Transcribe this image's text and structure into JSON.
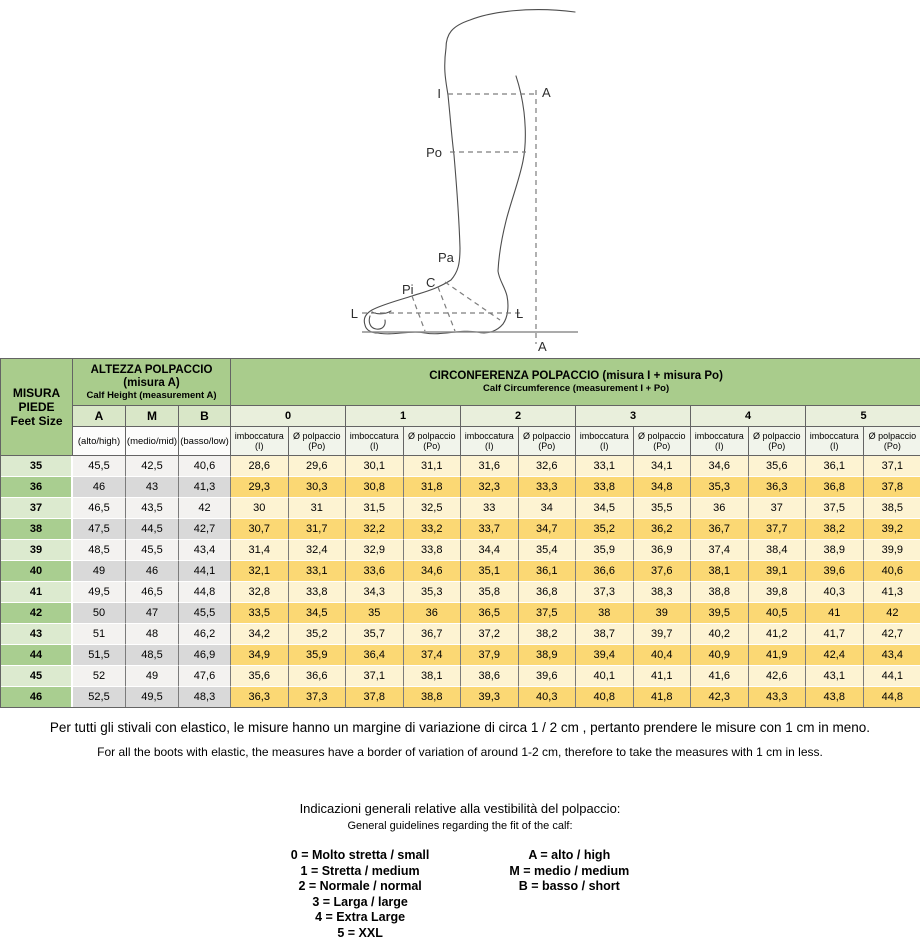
{
  "colors": {
    "header_green": "#A9CC8C",
    "subheader_green": "#D9E7C8",
    "row_green_light": "#DCEACF",
    "row_green_dark": "#A9CE90",
    "row_gray_light": "#F3F2F0",
    "row_gray_dark": "#D9D9D9",
    "row_yellow_light": "#FDF3D2",
    "row_yellow_dark": "#FBD874"
  },
  "diagram": {
    "labels": {
      "i": "I",
      "a_top": "A",
      "po": "Po",
      "pa": "Pa",
      "c": "C",
      "pi": "Pi",
      "l_left": "L",
      "l_right": "L",
      "a_bottom": "A"
    }
  },
  "table": {
    "feet_size": {
      "line1": "MISURA",
      "line2": "PIEDE",
      "line3": "Feet Size"
    },
    "calf_height": {
      "title": "ALTEZZA POLPACCIO",
      "subtitle": "(misura A)",
      "subtitle_en": "Calf Height (measurement A)",
      "codes": [
        "A",
        "M",
        "B"
      ],
      "code_labels": [
        "(alto/high)",
        "(medio/mid)",
        "(basso/low)"
      ]
    },
    "calf_circumference": {
      "title": "CIRCONFERENZA POLPACCIO  (misura I + misura Po)",
      "subtitle_en": "Calf Circumference (measurement I + Po)",
      "fit_levels": [
        "0",
        "1",
        "2",
        "3",
        "4",
        "5"
      ],
      "sub_columns": [
        {
          "name": "imboccatura",
          "code": "(I)"
        },
        {
          "name": "Ø polpaccio",
          "code": "(Po)"
        }
      ]
    },
    "rows": [
      {
        "size": "35",
        "height": [
          "45,5",
          "42,5",
          "40,6"
        ],
        "circumference": [
          "28,6",
          "29,6",
          "30,1",
          "31,1",
          "31,6",
          "32,6",
          "33,1",
          "34,1",
          "34,6",
          "35,6",
          "36,1",
          "37,1"
        ]
      },
      {
        "size": "36",
        "height": [
          "46",
          "43",
          "41,3"
        ],
        "circumference": [
          "29,3",
          "30,3",
          "30,8",
          "31,8",
          "32,3",
          "33,3",
          "33,8",
          "34,8",
          "35,3",
          "36,3",
          "36,8",
          "37,8"
        ]
      },
      {
        "size": "37",
        "height": [
          "46,5",
          "43,5",
          "42"
        ],
        "circumference": [
          "30",
          "31",
          "31,5",
          "32,5",
          "33",
          "34",
          "34,5",
          "35,5",
          "36",
          "37",
          "37,5",
          "38,5"
        ]
      },
      {
        "size": "38",
        "height": [
          "47,5",
          "44,5",
          "42,7"
        ],
        "circumference": [
          "30,7",
          "31,7",
          "32,2",
          "33,2",
          "33,7",
          "34,7",
          "35,2",
          "36,2",
          "36,7",
          "37,7",
          "38,2",
          "39,2"
        ]
      },
      {
        "size": "39",
        "height": [
          "48,5",
          "45,5",
          "43,4"
        ],
        "circumference": [
          "31,4",
          "32,4",
          "32,9",
          "33,8",
          "34,4",
          "35,4",
          "35,9",
          "36,9",
          "37,4",
          "38,4",
          "38,9",
          "39,9"
        ]
      },
      {
        "size": "40",
        "height": [
          "49",
          "46",
          "44,1"
        ],
        "circumference": [
          "32,1",
          "33,1",
          "33,6",
          "34,6",
          "35,1",
          "36,1",
          "36,6",
          "37,6",
          "38,1",
          "39,1",
          "39,6",
          "40,6"
        ]
      },
      {
        "size": "41",
        "height": [
          "49,5",
          "46,5",
          "44,8"
        ],
        "circumference": [
          "32,8",
          "33,8",
          "34,3",
          "35,3",
          "35,8",
          "36,8",
          "37,3",
          "38,3",
          "38,8",
          "39,8",
          "40,3",
          "41,3"
        ]
      },
      {
        "size": "42",
        "height": [
          "50",
          "47",
          "45,5"
        ],
        "circumference": [
          "33,5",
          "34,5",
          "35",
          "36",
          "36,5",
          "37,5",
          "38",
          "39",
          "39,5",
          "40,5",
          "41",
          "42"
        ]
      },
      {
        "size": "43",
        "height": [
          "51",
          "48",
          "46,2"
        ],
        "circumference": [
          "34,2",
          "35,2",
          "35,7",
          "36,7",
          "37,2",
          "38,2",
          "38,7",
          "39,7",
          "40,2",
          "41,2",
          "41,7",
          "42,7"
        ]
      },
      {
        "size": "44",
        "height": [
          "51,5",
          "48,5",
          "46,9"
        ],
        "circumference": [
          "34,9",
          "35,9",
          "36,4",
          "37,4",
          "37,9",
          "38,9",
          "39,4",
          "40,4",
          "40,9",
          "41,9",
          "42,4",
          "43,4"
        ]
      },
      {
        "size": "45",
        "height": [
          "52",
          "49",
          "47,6"
        ],
        "circumference": [
          "35,6",
          "36,6",
          "37,1",
          "38,1",
          "38,6",
          "39,6",
          "40,1",
          "41,1",
          "41,6",
          "42,6",
          "43,1",
          "44,1"
        ]
      },
      {
        "size": "46",
        "height": [
          "52,5",
          "49,5",
          "48,3"
        ],
        "circumference": [
          "36,3",
          "37,3",
          "37,8",
          "38,8",
          "39,3",
          "40,3",
          "40,8",
          "41,8",
          "42,3",
          "43,3",
          "43,8",
          "44,8"
        ]
      }
    ]
  },
  "notes": {
    "it": "Per tutti gli stivali con elastico, le misure hanno un margine di variazione di circa 1 / 2 cm , pertanto prendere le misure con 1 cm in meno.",
    "en": "For all the boots with elastic, the measures have a border of variation of around 1-2 cm, therefore to take the measures with 1 cm in less."
  },
  "legend": {
    "title_it": "Indicazioni generali relative alla vestibilità del polpaccio:",
    "title_en": "General guidelines regarding the fit of the calf:",
    "fit_codes": [
      "0 = Molto stretta / small",
      "1 = Stretta / medium",
      "2 = Normale / normal",
      "3 = Larga / large",
      "4 = Extra Large",
      "5 = XXL"
    ],
    "height_codes": [
      "A = alto / high",
      "M = medio / medium",
      "B = basso / short"
    ]
  }
}
